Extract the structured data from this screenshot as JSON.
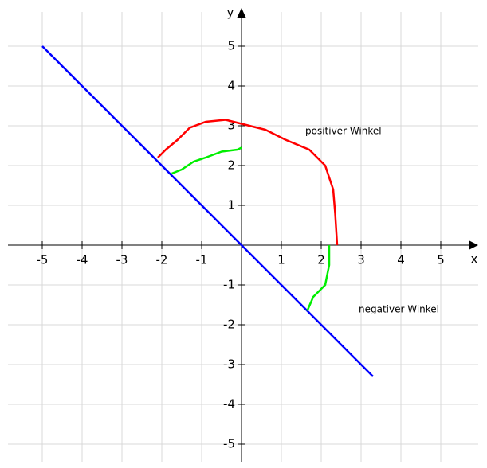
{
  "chart_data": {
    "type": "line",
    "x_label": "x",
    "y_label": "y",
    "xlim": [
      -5.86,
      5.94
    ],
    "ylim": [
      -5.44,
      5.86
    ],
    "xticks": [
      -5,
      -4,
      -3,
      -2,
      -1,
      1,
      2,
      3,
      4,
      5
    ],
    "yticks": [
      -5,
      -4,
      -3,
      -2,
      -1,
      1,
      2,
      3,
      4,
      5
    ],
    "grid": true,
    "series": [
      {
        "color": "#0000ff",
        "x": [
          -5,
          3.3
        ],
        "values": [
          5,
          -3.3
        ]
      },
      {
        "color": "#ff0000",
        "x": [
          -2.1,
          -1.9,
          -1.6,
          -1.3,
          -0.9,
          -0.4,
          0,
          0.6,
          1.1,
          1.7,
          2.1,
          2.3,
          2.35,
          2.4
        ],
        "values": [
          2.2,
          2.4,
          2.65,
          2.95,
          3.1,
          3.15,
          3.05,
          2.9,
          2.65,
          2.4,
          2.0,
          1.4,
          0.8,
          0
        ]
      },
      {
        "color": "#00ee00",
        "x": [
          -1.75,
          -1.5,
          -1.2,
          -0.9,
          -0.5,
          -0.1,
          0
        ],
        "values": [
          1.8,
          1.9,
          2.1,
          2.2,
          2.35,
          2.4,
          2.45
        ]
      },
      {
        "color": "#00ee00",
        "x": [
          1.65,
          1.8,
          2.1,
          2.2,
          2.2
        ],
        "values": [
          -1.65,
          -1.3,
          -1.0,
          -0.5,
          0
        ]
      }
    ],
    "annotations": [
      {
        "text": "positiver Winkel",
        "color": "#ff0000"
      },
      {
        "text": "negativer Winkel",
        "color": "#00cc00"
      }
    ]
  }
}
